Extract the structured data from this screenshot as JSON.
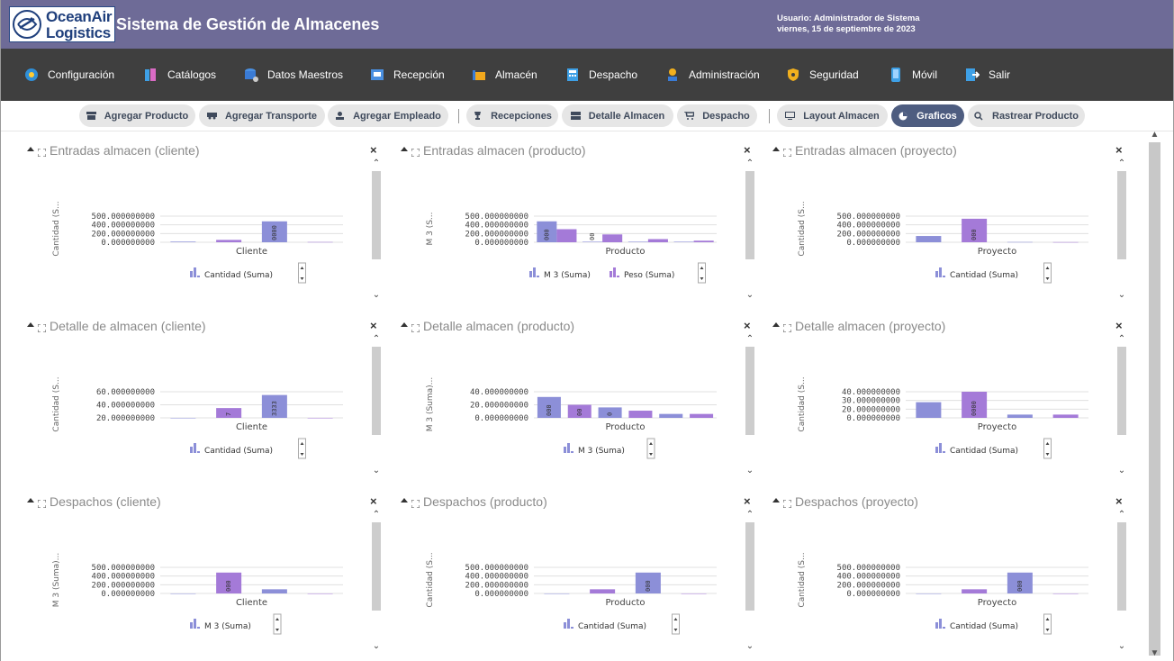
{
  "header": {
    "logo_line1": "OceanAir",
    "logo_line2": "Logistics",
    "title": "Sistema de Gestión de Almacenes",
    "user_line1": "Usuario: Administrador de Sistema",
    "user_line2": "viernes, 15 de septiembre de 2023",
    "bg_color": "#6e6b97"
  },
  "nav": {
    "items": [
      {
        "label": "Configuración",
        "icon": "gear-icon"
      },
      {
        "label": "Catálogos",
        "icon": "books-icon"
      },
      {
        "label": "Datos Maestros",
        "icon": "database-icon"
      },
      {
        "label": "Recepción",
        "icon": "inbox-icon"
      },
      {
        "label": "Almacén",
        "icon": "warehouse-icon"
      },
      {
        "label": "Despacho",
        "icon": "calculator-icon"
      },
      {
        "label": "Administración",
        "icon": "user-admin-icon"
      },
      {
        "label": "Seguridad",
        "icon": "shield-icon"
      },
      {
        "label": "Móvil",
        "icon": "mobile-icon"
      },
      {
        "label": "Salir",
        "icon": "exit-icon"
      }
    ]
  },
  "toolbar": {
    "buttons": [
      {
        "label": "Agregar Producto",
        "icon": "box-icon",
        "active": false
      },
      {
        "label": "Agregar Transporte",
        "icon": "truck-icon",
        "active": false
      },
      {
        "label": "Agregar Empleado",
        "icon": "user-icon",
        "active": false
      },
      {
        "label": "Recepciones",
        "icon": "trophy-icon",
        "active": false
      },
      {
        "label": "Detalle Almacen",
        "icon": "storage-icon",
        "active": false
      },
      {
        "label": "Despacho",
        "icon": "cart-icon",
        "active": false
      },
      {
        "label": "Layout Almacen",
        "icon": "monitor-icon",
        "active": false
      },
      {
        "label": "Graficos",
        "icon": "pie-chart-icon",
        "active": true
      },
      {
        "label": "Rastrear Producto",
        "icon": "search-icon",
        "active": false
      }
    ]
  },
  "panels": [
    {
      "title": "Entradas almacen (cliente)",
      "close": "×"
    },
    {
      "title": "Entradas almacen (producto)",
      "close": "×"
    },
    {
      "title": "Entradas almacen (proyecto)",
      "close": "×"
    },
    {
      "title": "Detalle de almacen (cliente)",
      "close": "×"
    },
    {
      "title": "Detalle almacen (producto)",
      "close": "×"
    },
    {
      "title": "Detalle almacen (proyecto)",
      "close": "×"
    },
    {
      "title": "Despachos (cliente)",
      "close": "×"
    },
    {
      "title": "Despachos (producto)",
      "close": "×"
    },
    {
      "title": "Despachos (proyecto)",
      "close": "×"
    }
  ],
  "chart_data": [
    {
      "type": "bar",
      "ylabel": "Cantidad (S...",
      "xlabel": "Cliente",
      "yticks": [
        "500.000000000",
        "400.000000000",
        "200.000000000",
        "0.000000000"
      ],
      "ylim": [
        0,
        500
      ],
      "series": [
        {
          "name": "Cantidad (Suma)",
          "values": [
            12,
            45,
            400,
            5
          ]
        }
      ],
      "data_labels": [
        "",
        "",
        "0000",
        ""
      ],
      "legend": [
        "Cantidad (Suma)"
      ]
    },
    {
      "type": "bar",
      "ylabel": "M 3 (S...",
      "xlabel": "Producto",
      "yticks": [
        "500.000000000",
        "400.000000000",
        "200.000000000",
        "0.000000000"
      ],
      "ylim": [
        0,
        500
      ],
      "series": [
        {
          "name": "M 3 (Suma)",
          "values": [
            400,
            10,
            10,
            10
          ]
        },
        {
          "name": "Peso (Suma)",
          "values": [
            250,
            150,
            60,
            30
          ]
        }
      ],
      "data_labels": [
        "000",
        "00",
        "",
        ""
      ],
      "legend": [
        "M 3 (Suma)",
        "Peso (Suma)"
      ]
    },
    {
      "type": "bar",
      "ylabel": "Cantidad (S...",
      "xlabel": "Proyecto",
      "yticks": [
        "500.000000000",
        "400.000000000",
        "200.000000000",
        "0.000000000"
      ],
      "ylim": [
        0,
        500
      ],
      "series": [
        {
          "name": "Cantidad (Suma)",
          "values": [
            120,
            450,
            5,
            3
          ]
        }
      ],
      "data_labels": [
        "",
        "000",
        "",
        ""
      ],
      "legend": [
        "Cantidad (Suma)"
      ]
    },
    {
      "type": "bar",
      "ylabel": "Cantidad (S...",
      "xlabel": "Cliente",
      "yticks": [
        "60.000000000",
        "40.000000000",
        "20.000000000"
      ],
      "ylim": [
        20,
        60
      ],
      "series": [
        {
          "name": "Cantidad (Suma)",
          "values": [
            20,
            35,
            55,
            20
          ]
        }
      ],
      "data_labels": [
        "",
        "7",
        "3333",
        ""
      ],
      "legend": [
        "Cantidad (Suma)"
      ]
    },
    {
      "type": "bar",
      "ylabel": "M 3 (Suma)...",
      "xlabel": "Producto",
      "yticks": [
        "40.000000000",
        "20.000000000",
        "0.000000000"
      ],
      "ylim": [
        0,
        40
      ],
      "series": [
        {
          "name": "M 3 (Suma)",
          "values": [
            32,
            20,
            16,
            11,
            6,
            6
          ]
        }
      ],
      "data_labels": [
        "000",
        "00",
        "0",
        "",
        "",
        ""
      ],
      "legend": [
        "M 3 (Suma)"
      ]
    },
    {
      "type": "bar",
      "ylabel": "Cantidad (S...",
      "xlabel": "Proyecto",
      "yticks": [
        "40.000000000",
        "30.000000000",
        "20.000000000",
        "0.000000000"
      ],
      "ylim": [
        0,
        40
      ],
      "series": [
        {
          "name": "Cantidad (Suma)",
          "values": [
            24,
            40,
            5,
            5
          ]
        }
      ],
      "data_labels": [
        "",
        "0000",
        "",
        ""
      ],
      "legend": [
        "Cantidad (Suma)"
      ]
    },
    {
      "type": "bar",
      "ylabel": "M 3 (Suma)...",
      "xlabel": "Cliente",
      "yticks": [
        "500.000000000",
        "400.000000000",
        "200.000000000",
        "0.000000000"
      ],
      "ylim": [
        0,
        500
      ],
      "series": [
        {
          "name": "M 3 (Suma)",
          "values": [
            0,
            400,
            80,
            0
          ]
        }
      ],
      "data_labels": [
        "",
        "000",
        "",
        ""
      ],
      "legend": [
        "M 3 (Suma)"
      ]
    },
    {
      "type": "bar",
      "ylabel": "Cantidad (S...",
      "xlabel": "Producto",
      "yticks": [
        "500.000000000",
        "400.000000000",
        "200.000000000",
        "0.000000000"
      ],
      "ylim": [
        0,
        500
      ],
      "series": [
        {
          "name": "Cantidad (Suma)",
          "values": [
            0,
            80,
            400,
            0
          ]
        }
      ],
      "data_labels": [
        "",
        "",
        "000",
        ""
      ],
      "legend": [
        "Cantidad (Suma)"
      ]
    },
    {
      "type": "bar",
      "ylabel": "Cantidad (S...",
      "xlabel": "Proyecto",
      "yticks": [
        "500.000000000",
        "400.000000000",
        "200.000000000",
        "0.000000000"
      ],
      "ylim": [
        0,
        500
      ],
      "series": [
        {
          "name": "Cantidad (Suma)",
          "values": [
            0,
            80,
            400,
            0
          ]
        }
      ],
      "data_labels": [
        "",
        "",
        "000",
        ""
      ],
      "legend": [
        "Cantidad (Suma)"
      ]
    }
  ],
  "colors": {
    "series_a": "#8c8fd8",
    "series_b": "#a47ad8",
    "nav_bg": "#3f3f3f",
    "active_btn": "#4e5d80"
  }
}
